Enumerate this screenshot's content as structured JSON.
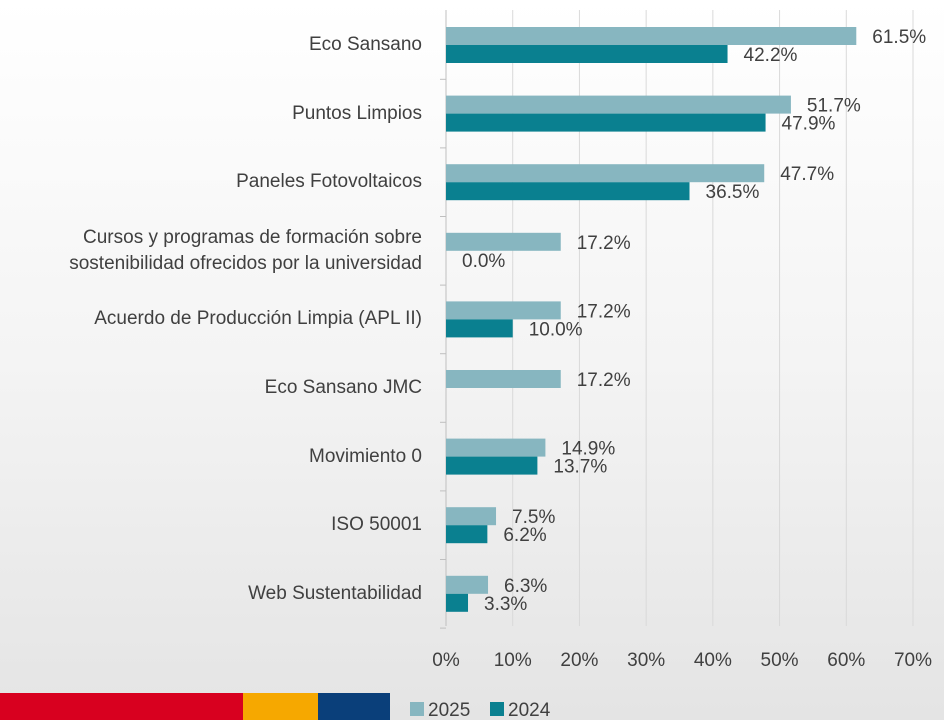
{
  "chart_data": {
    "type": "hbar",
    "categories": [
      "Eco Sansano",
      "Puntos Limpios",
      "Paneles Fotovoltaicos",
      "Cursos y programas de formación sobre\nsostenibilidad ofrecidos por la universidad",
      "Acuerdo de Producción Limpia (APL II)",
      "Eco Sansano JMC",
      "Movimiento 0",
      "ISO 50001",
      "Web Sustentabilidad"
    ],
    "series": [
      {
        "name": "2025",
        "color": "#87b6c0",
        "values": [
          61.5,
          51.7,
          47.7,
          17.2,
          17.2,
          17.2,
          14.9,
          7.5,
          6.3
        ],
        "value_labels": [
          "61.5%",
          "51.7%",
          "47.7%",
          "17.2%",
          "17.2%",
          "17.2%",
          "14.9%",
          "7.5%",
          "6.3%"
        ]
      },
      {
        "name": "2024",
        "color": "#0a8090",
        "values": [
          42.2,
          47.9,
          36.5,
          0.0,
          10.0,
          null,
          13.7,
          6.2,
          3.3
        ],
        "value_labels": [
          "42.2%",
          "47.9%",
          "36.5%",
          "0.0%",
          "10.0%",
          null,
          "13.7%",
          "6.2%",
          "3.3%"
        ]
      }
    ],
    "xlim": [
      0,
      70
    ],
    "xticks": [
      {
        "value": 0,
        "label": "0%"
      },
      {
        "value": 10,
        "label": "10%"
      },
      {
        "value": 20,
        "label": "20%"
      },
      {
        "value": 30,
        "label": "30%"
      },
      {
        "value": 40,
        "label": "40%"
      },
      {
        "value": 50,
        "label": "50%"
      },
      {
        "value": 60,
        "label": "60%"
      },
      {
        "value": 70,
        "label": "70%"
      }
    ],
    "grid": true,
    "legend": "bottom"
  }
}
